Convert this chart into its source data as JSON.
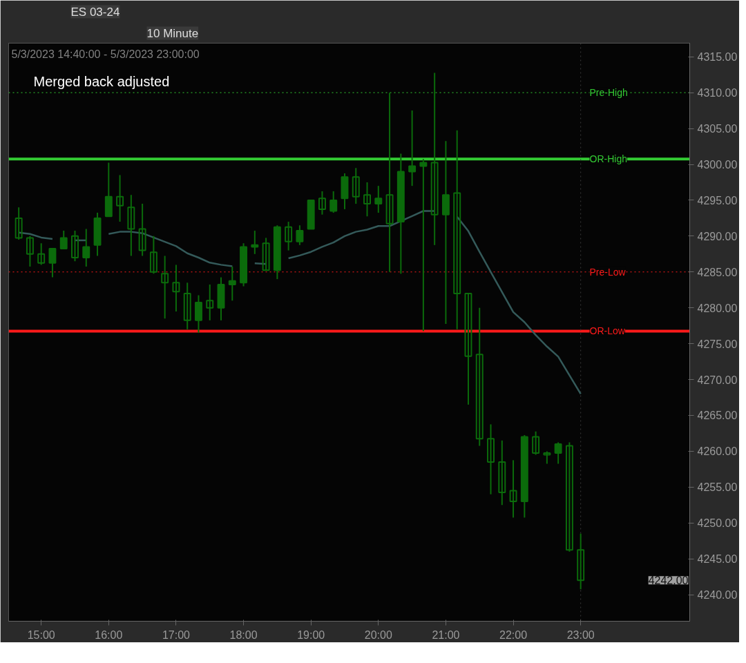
{
  "chart_data": {
    "type": "candlestick",
    "title": "ES 03-24",
    "subtitle": "10 Minute",
    "color": "#0b6b0b",
    "x": [
      "2023-05-03T14:40",
      "2023-05-03T14:50",
      "2023-05-03T15:00",
      "2023-05-03T15:10",
      "2023-05-03T15:20",
      "2023-05-03T15:30",
      "2023-05-03T15:40",
      "2023-05-03T15:50",
      "2023-05-03T16:00",
      "2023-05-03T16:10",
      "2023-05-03T16:20",
      "2023-05-03T16:30",
      "2023-05-03T16:40",
      "2023-05-03T16:50",
      "2023-05-03T17:00",
      "2023-05-03T17:10",
      "2023-05-03T17:20",
      "2023-05-03T17:30",
      "2023-05-03T17:40",
      "2023-05-03T17:50",
      "2023-05-03T18:00",
      "2023-05-03T18:10",
      "2023-05-03T18:20",
      "2023-05-03T18:30",
      "2023-05-03T18:40",
      "2023-05-03T18:50",
      "2023-05-03T19:00",
      "2023-05-03T19:10",
      "2023-05-03T19:20",
      "2023-05-03T19:30",
      "2023-05-03T19:40",
      "2023-05-03T19:50",
      "2023-05-03T20:00",
      "2023-05-03T20:10",
      "2023-05-03T20:20",
      "2023-05-03T20:30",
      "2023-05-03T20:40",
      "2023-05-03T20:50",
      "2023-05-03T21:00",
      "2023-05-03T21:10",
      "2023-05-03T21:20",
      "2023-05-03T21:30",
      "2023-05-03T21:40",
      "2023-05-03T21:50",
      "2023-05-03T22:00",
      "2023-05-03T22:10",
      "2023-05-03T22:20",
      "2023-05-03T22:30",
      "2023-05-03T22:40",
      "2023-05-03T22:50",
      "2023-05-03T23:00"
    ],
    "ohlc": [
      [
        4292.5,
        4294,
        4289.5,
        4289.75
      ],
      [
        4289.75,
        4290,
        4285.75,
        4287.5
      ],
      [
        4287.5,
        4289,
        4286,
        4286.25
      ],
      [
        4286.25,
        4288.25,
        4284.25,
        4288.25
      ],
      [
        4288.25,
        4290.75,
        4288.25,
        4289.75
      ],
      [
        4290,
        4290.75,
        4286.5,
        4287
      ],
      [
        4287,
        4291,
        4285.75,
        4288.5
      ],
      [
        4288.75,
        4293.25,
        4287.25,
        4292.5
      ],
      [
        4292.75,
        4300.25,
        4292.75,
        4295.5
      ],
      [
        4295.5,
        4298.5,
        4292,
        4294.25
      ],
      [
        4294,
        4295.75,
        4287.25,
        4291
      ],
      [
        4291,
        4294.5,
        4287.25,
        4288
      ],
      [
        4287.75,
        4290,
        4284.75,
        4285
      ],
      [
        4284.75,
        4287.25,
        4278.5,
        4283.5
      ],
      [
        4283.5,
        4286,
        4279.5,
        4282.25
      ],
      [
        4282,
        4283.5,
        4277,
        4278.25
      ],
      [
        4278.25,
        4281.75,
        4276.5,
        4280.75
      ],
      [
        4281,
        4283.25,
        4278.25,
        4280
      ],
      [
        4280,
        4284.25,
        4278.25,
        4283.25
      ],
      [
        4283.25,
        4285.75,
        4281,
        4283.75
      ],
      [
        4283.5,
        4289,
        4283,
        4288.5
      ],
      [
        4288.5,
        4290.75,
        4287.5,
        4288.75
      ],
      [
        4289,
        4289.75,
        4285.25,
        4285.25
      ],
      [
        4285.25,
        4291.5,
        4284,
        4291.25
      ],
      [
        4291.25,
        4292,
        4288,
        4289.25
      ],
      [
        4289.25,
        4291.5,
        4288.75,
        4290.75
      ],
      [
        4291,
        4295,
        4291,
        4295
      ],
      [
        4295.25,
        4296.25,
        4293,
        4293.75
      ],
      [
        4293.5,
        4296.25,
        4293.25,
        4295
      ],
      [
        4295.25,
        4298.75,
        4293.75,
        4298.25
      ],
      [
        4298.25,
        4299.5,
        4294.5,
        4295.5
      ],
      [
        4295.75,
        4297.5,
        4292.75,
        4294.5
      ],
      [
        4294.5,
        4297,
        4293.25,
        4295.25
      ],
      [
        4295.75,
        4310,
        4285,
        4291.75
      ],
      [
        4292,
        4301.5,
        4284.75,
        4299
      ],
      [
        4299,
        4307.5,
        4297,
        4299.75
      ],
      [
        4299.75,
        4300.75,
        4276.75,
        4300.25
      ],
      [
        4300.25,
        4312.75,
        4288.75,
        4293
      ],
      [
        4293,
        4303.25,
        4277.75,
        4295.75
      ],
      [
        4296,
        4304.75,
        4277,
        4282
      ],
      [
        4282,
        4282,
        4266.5,
        4273.25
      ],
      [
        4273.5,
        4280,
        4260.75,
        4261.75
      ],
      [
        4261.75,
        4263.75,
        4254,
        4258.5
      ],
      [
        4258.5,
        4261.5,
        4252.5,
        4254.25
      ],
      [
        4254.5,
        4258.75,
        4250.75,
        4253
      ],
      [
        4253,
        4262.25,
        4250.75,
        4262
      ],
      [
        4262,
        4262.75,
        4259.5,
        4259.75
      ],
      [
        4259.75,
        4260,
        4258.25,
        4259.5
      ],
      [
        4259.75,
        4261.25,
        4258.25,
        4261
      ],
      [
        4260.75,
        4261.25,
        4246,
        4246.25
      ],
      [
        4246.25,
        4248.5,
        4240.75,
        4242
      ]
    ],
    "series": [
      {
        "type": "line",
        "color": "#345a5a",
        "values": [
          4290.5,
          4290.3,
          4289.8,
          4289.6,
          null,
          4289.4,
          4289.4,
          null,
          4290.3,
          4290.6,
          4290.6,
          4290.4,
          4289.8,
          4289.2,
          4288.6,
          4287.6,
          4287.0,
          4286.3,
          4286.0,
          4285.8,
          null,
          4286.2,
          4286.1,
          null,
          4286.9,
          4287.3,
          4287.8,
          4288.5,
          4289.1,
          4290.0,
          4290.6,
          4290.9,
          4291.4,
          4291.4,
          4292.1,
          4292.8,
          4293.5,
          4293.5,
          null,
          4292.7,
          4290.7,
          4287.8,
          4285.0,
          4282.2,
          4279.4,
          4278.0,
          4276.2,
          4274.6,
          4273.2,
          4270.6,
          4268.0
        ]
      }
    ],
    "xlim": [
      "2023-05-03T14:31",
      "2023-05-04T00:37"
    ],
    "xticks": [
      {
        "value": "2023-05-03T15:00",
        "label": "15:00"
      },
      {
        "value": "2023-05-03T16:00",
        "label": "16:00"
      },
      {
        "value": "2023-05-03T17:00",
        "label": "17:00"
      },
      {
        "value": "2023-05-03T18:00",
        "label": "18:00"
      },
      {
        "value": "2023-05-03T19:00",
        "label": "19:00"
      },
      {
        "value": "2023-05-03T20:00",
        "label": "20:00"
      },
      {
        "value": "2023-05-03T21:00",
        "label": "21:00"
      },
      {
        "value": "2023-05-03T22:00",
        "label": "22:00"
      },
      {
        "value": "2023-05-03T23:00",
        "label": "23:00"
      }
    ],
    "ylim": [
      4236.3,
      4316.9
    ],
    "yticks": [
      {
        "value": 4240,
        "label": "4240.00"
      },
      {
        "value": 4245,
        "label": "4245.00"
      },
      {
        "value": 4250,
        "label": "4250.00"
      },
      {
        "value": 4255,
        "label": "4255.00"
      },
      {
        "value": 4260,
        "label": "4260.00"
      },
      {
        "value": 4265,
        "label": "4265.00"
      },
      {
        "value": 4270,
        "label": "4270.00"
      },
      {
        "value": 4275,
        "label": "4275.00"
      },
      {
        "value": 4280,
        "label": "4280.00"
      },
      {
        "value": 4285,
        "label": "4285.00"
      },
      {
        "value": 4290,
        "label": "4290.00"
      },
      {
        "value": 4295,
        "label": "4295.00"
      },
      {
        "value": 4300,
        "label": "4300.00"
      },
      {
        "value": 4305,
        "label": "4305.00"
      },
      {
        "value": 4310,
        "label": "4310.00"
      },
      {
        "value": 4315,
        "label": "4315.00"
      }
    ],
    "ref_lines": [
      {
        "axis": "y",
        "value": 4310,
        "label": "Pre-High",
        "color": "#33cc33",
        "line_style": "dotted"
      },
      {
        "axis": "y",
        "value": 4300.75,
        "label": "OR-High",
        "color": "#33cc33",
        "line_style": "solid"
      },
      {
        "axis": "y",
        "value": 4285,
        "label": "Pre-Low",
        "color": "#ff1a1a",
        "line_style": "dotted"
      },
      {
        "axis": "y",
        "value": 4276.75,
        "label": "OR-Low",
        "color": "#ff1a1a",
        "line_style": "solid"
      },
      {
        "axis": "x",
        "value": "2023-05-03T23:00",
        "color": "#3a3a3a",
        "line_style": "dotted"
      }
    ],
    "annotations": [
      "5/3/2023 14:40:00 - 5/3/2023 23:00:00",
      "Merged back adjusted",
      "4242.00"
    ],
    "grid": false
  }
}
